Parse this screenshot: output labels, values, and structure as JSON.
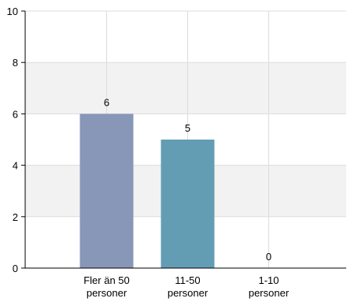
{
  "chart_data": {
    "type": "bar",
    "title": "",
    "xlabel": "",
    "ylabel": "",
    "categories": [
      [
        "Fler än 50",
        "personer"
      ],
      [
        "11-50",
        "personer"
      ],
      [
        "1-10",
        "personer"
      ]
    ],
    "values": [
      6,
      5,
      0
    ],
    "data_labels": [
      "6",
      "5",
      "0"
    ],
    "ylim": [
      0,
      10
    ],
    "yticks": [
      0,
      2,
      4,
      6,
      8,
      10
    ],
    "ytick_labels": [
      "0",
      "2",
      "4",
      "6",
      "8",
      "10"
    ],
    "grid": true,
    "banded_background": true,
    "legend": "none",
    "colors": {
      "bars": [
        "#8896b8",
        "#639db4",
        "#7fb08a"
      ],
      "band": "#f2f2f2",
      "grid": "#dcdcdc",
      "axis": "#000000"
    }
  }
}
